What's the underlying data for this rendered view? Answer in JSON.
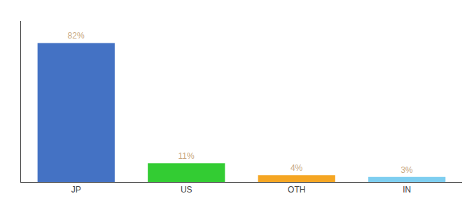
{
  "chart_data": {
    "type": "bar",
    "categories": [
      "JP",
      "US",
      "OTH",
      "IN"
    ],
    "values": [
      82,
      11,
      4,
      3
    ],
    "value_labels": [
      "82%",
      "11%",
      "4%",
      "3%"
    ],
    "data_labels": true,
    "colors": [
      "#4472c4",
      "#33cc33",
      "#f5a623",
      "#7ecef0"
    ],
    "ylim": [
      0,
      95
    ],
    "grid": false,
    "tick_labels": "x"
  }
}
